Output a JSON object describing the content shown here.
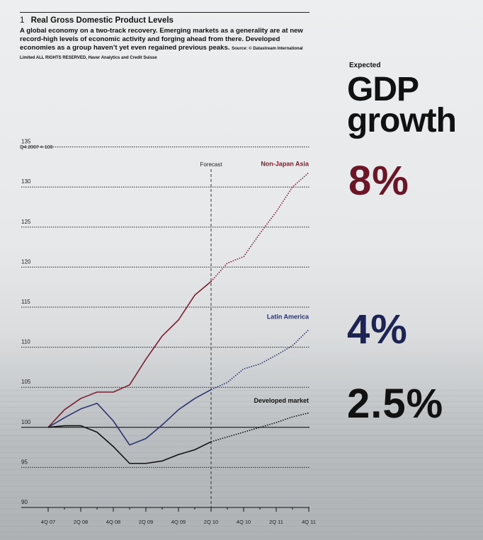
{
  "figure": {
    "number": "1",
    "title": "Real Gross Domestic Product Levels",
    "description": "A global economy on a two-track recovery. Emerging markets as a generality are at new record-high levels of economic activity and forging ahead from there. Developed economies as a group haven’t yet even regained previous peaks.",
    "source": "Source: © Datastream International Limited ALL RIGHTS RESERVED, Haver Analytics and Credit Suisse",
    "unit_label": "Q4 2007 = 100"
  },
  "side": {
    "expected_label": "Expected",
    "headline": "GDP growth",
    "values": [
      {
        "text": "8%",
        "color": "#6b1626"
      },
      {
        "text": "4%",
        "color": "#1d2453"
      },
      {
        "text": "2.5%",
        "color": "#111111"
      }
    ]
  },
  "chart_data": {
    "type": "line",
    "ylim": [
      90,
      137
    ],
    "yticks": [
      90,
      95,
      100,
      105,
      110,
      115,
      120,
      125,
      130,
      135
    ],
    "x_labels": [
      "4Q 07",
      "2Q 08",
      "4Q 08",
      "2Q 09",
      "4Q 09",
      "2Q 10",
      "4Q 10",
      "2Q 11",
      "4Q 11"
    ],
    "x_quarters": [
      "4Q 07",
      "1Q 08",
      "2Q 08",
      "3Q 08",
      "4Q 08",
      "1Q 09",
      "2Q 09",
      "3Q 09",
      "4Q 09",
      "1Q 10",
      "2Q 10",
      "3Q 10",
      "4Q 10",
      "1Q 11",
      "2Q 11",
      "3Q 11",
      "4Q 11"
    ],
    "forecast_start": "2Q 10",
    "forecast_label": "Forecast",
    "baseline": 100,
    "series": [
      {
        "name": "Non-Japan Asia",
        "color": "#7a1f2e",
        "values": [
          100,
          102.2,
          103.6,
          104.4,
          104.4,
          105.3,
          108.5,
          111.4,
          113.4,
          116.5,
          118.2,
          120.5,
          121.3,
          124.2,
          126.9,
          130.0,
          131.8
        ]
      },
      {
        "name": "Latin America",
        "color": "#2c3470",
        "values": [
          100,
          101.2,
          102.3,
          103.0,
          100.8,
          97.8,
          98.6,
          100.3,
          102.2,
          103.6,
          104.7,
          105.6,
          107.3,
          107.9,
          109.0,
          110.2,
          112.2
        ]
      },
      {
        "name": "Developed market",
        "color": "#111111",
        "values": [
          100,
          100.2,
          100.2,
          99.4,
          97.6,
          95.5,
          95.5,
          95.8,
          96.6,
          97.2,
          98.2,
          98.8,
          99.4,
          100.0,
          100.6,
          101.3,
          101.8
        ]
      }
    ]
  }
}
